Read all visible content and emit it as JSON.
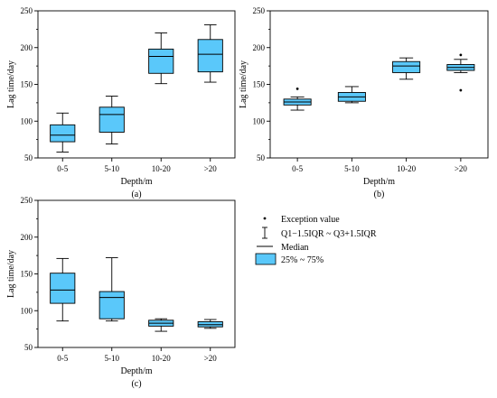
{
  "chart_data": [
    {
      "type": "box",
      "panel_label": "(a)",
      "xlabel": "Depth/m",
      "ylabel": "Lag time/day",
      "ylim": [
        50,
        250
      ],
      "yticks": [
        50,
        100,
        150,
        200,
        250
      ],
      "categories": [
        "0-5",
        "5-10",
        "10-20",
        ">20"
      ],
      "boxes": [
        {
          "category": "0-5",
          "whisker_low": 58,
          "q1": 72,
          "median": 81,
          "q3": 95,
          "whisker_high": 111,
          "outliers": []
        },
        {
          "category": "5-10",
          "whisker_low": 69,
          "q1": 85,
          "median": 109,
          "q3": 119,
          "whisker_high": 134,
          "outliers": []
        },
        {
          "category": "10-20",
          "whisker_low": 151,
          "q1": 165,
          "median": 188,
          "q3": 198,
          "whisker_high": 220,
          "outliers": []
        },
        {
          "category": ">20",
          "whisker_low": 153,
          "q1": 167,
          "median": 191,
          "q3": 211,
          "whisker_high": 231,
          "outliers": []
        }
      ]
    },
    {
      "type": "box",
      "panel_label": "(b)",
      "xlabel": "Depth/m",
      "ylabel": "Lag time/day",
      "ylim": [
        50,
        250
      ],
      "yticks": [
        50,
        100,
        150,
        200,
        250
      ],
      "categories": [
        "0-5",
        "5-10",
        "10-20",
        ">20"
      ],
      "boxes": [
        {
          "category": "0-5",
          "whisker_low": 115,
          "q1": 122,
          "median": 126,
          "q3": 130,
          "whisker_high": 133,
          "outliers": [
            144
          ]
        },
        {
          "category": "5-10",
          "whisker_low": 125,
          "q1": 127,
          "median": 133,
          "q3": 139,
          "whisker_high": 147,
          "outliers": []
        },
        {
          "category": "10-20",
          "whisker_low": 157,
          "q1": 166,
          "median": 175,
          "q3": 181,
          "whisker_high": 186,
          "outliers": []
        },
        {
          "category": ">20",
          "whisker_low": 166,
          "q1": 169,
          "median": 173,
          "q3": 177,
          "whisker_high": 184,
          "outliers": [
            190,
            142
          ]
        }
      ]
    },
    {
      "type": "box",
      "panel_label": "(c)",
      "xlabel": "Depth/m",
      "ylabel": "Lag time/day",
      "ylim": [
        50,
        250
      ],
      "yticks": [
        50,
        100,
        150,
        200,
        250
      ],
      "categories": [
        "0-5",
        "5-10",
        "10-20",
        ">20"
      ],
      "boxes": [
        {
          "category": "0-5",
          "whisker_low": 86,
          "q1": 110,
          "median": 128,
          "q3": 151,
          "whisker_high": 171,
          "outliers": []
        },
        {
          "category": "5-10",
          "whisker_low": 86,
          "q1": 89,
          "median": 118,
          "q3": 126,
          "whisker_high": 172,
          "outliers": []
        },
        {
          "category": "10-20",
          "whisker_low": 72,
          "q1": 79,
          "median": 83,
          "q3": 87,
          "whisker_high": 89,
          "outliers": []
        },
        {
          "category": ">20",
          "whisker_low": 76,
          "q1": 78,
          "median": 81,
          "q3": 85,
          "whisker_high": 88,
          "outliers": []
        }
      ]
    }
  ],
  "legend": {
    "items": [
      {
        "symbol": "dot",
        "label": "Exception value"
      },
      {
        "symbol": "whisker",
        "label": "Q1−1.5IQR ~ Q3+1.5IQR"
      },
      {
        "symbol": "line",
        "label": "Median"
      },
      {
        "symbol": "box",
        "label": "25% ~ 75%"
      }
    ]
  },
  "colors": {
    "box_fill": "#5AC8FA",
    "stroke": "#000000",
    "background": "#ffffff"
  }
}
